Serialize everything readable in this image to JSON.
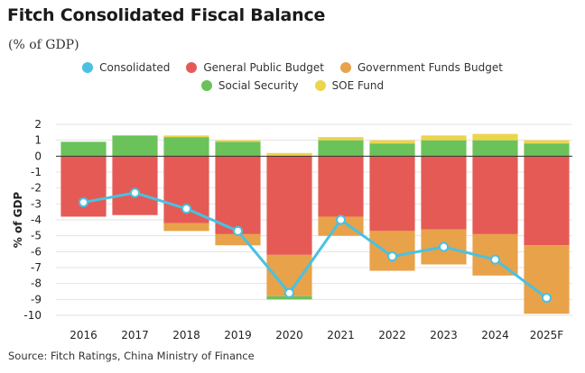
{
  "header": {
    "title": "Fitch Consolidated Fiscal Balance",
    "subtitle": "(% of GDP)"
  },
  "source": "Source: Fitch Ratings, China Ministry of Finance",
  "colors": {
    "consolidated": "#49c1e2",
    "general_public_budget": "#e55a55",
    "government_funds_budget": "#e8a24a",
    "social_security": "#6bc25a",
    "soe_fund": "#ecd54d"
  },
  "legend": [
    {
      "label": "Consolidated",
      "color": "#49c1e2"
    },
    {
      "label": "General Public Budget",
      "color": "#e55a55"
    },
    {
      "label": "Government Funds Budget",
      "color": "#e8a24a"
    },
    {
      "label": "Social Security",
      "color": "#6bc25a"
    },
    {
      "label": "SOE Fund",
      "color": "#ecd54d"
    }
  ],
  "chart_data": {
    "type": "bar",
    "stacked": true,
    "title": "Fitch Consolidated Fiscal Balance",
    "subtitle": "(% of GDP)",
    "xlabel": "",
    "ylabel": "% of GDP",
    "ylim": [
      -10,
      2
    ],
    "yticks": [
      2,
      1,
      0,
      -1,
      -2,
      -3,
      -4,
      -5,
      -6,
      -7,
      -8,
      -9,
      -10
    ],
    "grid": true,
    "categories": [
      "2016",
      "2017",
      "2018",
      "2019",
      "2020",
      "2021",
      "2022",
      "2023",
      "2024",
      "2025F"
    ],
    "series": [
      {
        "name": "General Public Budget",
        "key": "general_public_budget",
        "values": [
          -3.8,
          -3.7,
          -4.2,
          -4.9,
          -6.2,
          -3.8,
          -4.7,
          -4.6,
          -4.9,
          -5.6
        ]
      },
      {
        "name": "Government Funds Budget",
        "key": "government_funds_budget",
        "values": [
          0.0,
          0.0,
          -0.5,
          -0.7,
          -2.6,
          -1.2,
          -2.5,
          -2.2,
          -2.6,
          -4.3
        ]
      },
      {
        "name": "Social Security",
        "key": "social_security",
        "values": [
          0.9,
          1.3,
          1.2,
          0.9,
          -0.2,
          1.0,
          0.8,
          1.0,
          1.0,
          0.8
        ]
      },
      {
        "name": "SOE Fund",
        "key": "soe_fund",
        "values": [
          0.0,
          0.0,
          0.1,
          0.1,
          0.2,
          0.2,
          0.2,
          0.3,
          0.4,
          0.2
        ]
      },
      {
        "name": "Consolidated",
        "key": "consolidated",
        "type": "line",
        "values": [
          -2.9,
          -2.3,
          -3.3,
          -4.7,
          -8.6,
          -4.0,
          -6.3,
          -5.7,
          -6.5,
          -8.9
        ]
      }
    ]
  }
}
